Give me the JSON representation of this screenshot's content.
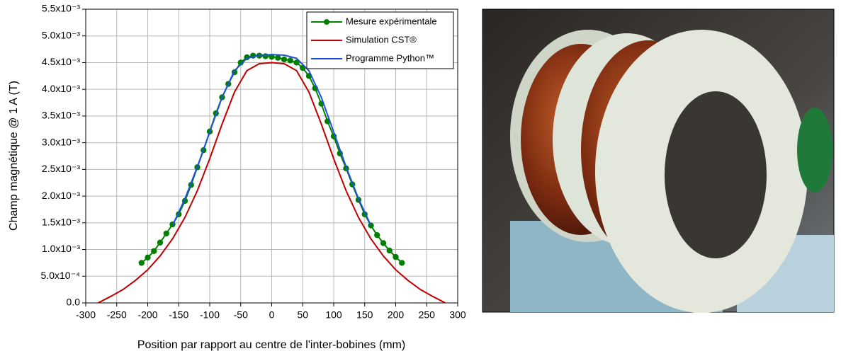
{
  "chart_data": {
    "type": "line",
    "xlabel": "Position par rapport au centre de l'inter-bobines (mm)",
    "ylabel": "Champ magnétique @ 1 A (T)",
    "xlim": [
      -300,
      300
    ],
    "ylim": [
      0,
      0.0055
    ],
    "xticks": [
      -300,
      -250,
      -200,
      -150,
      -100,
      -50,
      0,
      50,
      100,
      150,
      200,
      250,
      300
    ],
    "yticks": [
      {
        "value": 0,
        "label": "0.0"
      },
      {
        "value": 0.0005,
        "label": "5.0x10⁻⁴"
      },
      {
        "value": 0.001,
        "label": "1.0x10⁻³"
      },
      {
        "value": 0.0015,
        "label": "1.5x10⁻³"
      },
      {
        "value": 0.002,
        "label": "2.0x10⁻³"
      },
      {
        "value": 0.0025,
        "label": "2.5x10⁻³"
      },
      {
        "value": 0.003,
        "label": "3.0x10⁻³"
      },
      {
        "value": 0.0035,
        "label": "3.5x10⁻³"
      },
      {
        "value": 0.004,
        "label": "4.0x10⁻³"
      },
      {
        "value": 0.0045,
        "label": "4.5x10⁻³"
      },
      {
        "value": 0.005,
        "label": "5.0x10⁻³"
      },
      {
        "value": 0.0055,
        "label": "5.5x10⁻³"
      }
    ],
    "grid": true,
    "legend": "upper right",
    "series": [
      {
        "name": "Mesure expérimentale",
        "color": "#008000",
        "marker": true,
        "x": [
          -210,
          -200,
          -190,
          -180,
          -170,
          -160,
          -150,
          -140,
          -130,
          -120,
          -110,
          -100,
          -90,
          -80,
          -70,
          -60,
          -50,
          -40,
          -30,
          -20,
          -10,
          0,
          10,
          20,
          30,
          40,
          50,
          60,
          70,
          80,
          90,
          100,
          110,
          120,
          130,
          140,
          150,
          160,
          170,
          180,
          190,
          200,
          210
        ],
        "values": [
          0.00075,
          0.00085,
          0.00097,
          0.00113,
          0.0013,
          0.00147,
          0.00166,
          0.00191,
          0.00221,
          0.00254,
          0.00286,
          0.00321,
          0.00355,
          0.00385,
          0.0041,
          0.00432,
          0.0045,
          0.0046,
          0.00463,
          0.00463,
          0.00462,
          0.00461,
          0.00459,
          0.00456,
          0.00454,
          0.0045,
          0.0044,
          0.00425,
          0.00402,
          0.00373,
          0.0034,
          0.00312,
          0.0028,
          0.00252,
          0.00222,
          0.00193,
          0.00166,
          0.00145,
          0.00127,
          0.00112,
          0.00098,
          0.00086,
          0.00075
        ]
      },
      {
        "name": "Simulation CST®",
        "color": "#c00000",
        "marker": false,
        "x": [
          -280,
          -260,
          -240,
          -220,
          -200,
          -180,
          -160,
          -140,
          -120,
          -100,
          -80,
          -60,
          -40,
          -20,
          0,
          20,
          40,
          60,
          80,
          100,
          120,
          140,
          160,
          180,
          200,
          220,
          240,
          260,
          280
        ],
        "values": [
          0,
          0.00012,
          0.00025,
          0.00042,
          0.00062,
          0.00088,
          0.0012,
          0.0016,
          0.0021,
          0.0027,
          0.00335,
          0.00395,
          0.00435,
          0.00448,
          0.0045,
          0.00448,
          0.00435,
          0.00395,
          0.00335,
          0.0027,
          0.0021,
          0.0016,
          0.0012,
          0.00088,
          0.00062,
          0.00042,
          0.00025,
          0.00012,
          0
        ]
      },
      {
        "name": "Programme Python™",
        "color": "#2050e0",
        "marker": false,
        "x": [
          -160,
          -140,
          -120,
          -100,
          -80,
          -60,
          -40,
          -20,
          0,
          20,
          40,
          60,
          80,
          100,
          120,
          140,
          160
        ],
        "values": [
          0.00145,
          0.00195,
          0.00255,
          0.0032,
          0.00385,
          0.00435,
          0.00458,
          0.00464,
          0.00465,
          0.00464,
          0.00458,
          0.00435,
          0.00385,
          0.0032,
          0.00255,
          0.00195,
          0.00145
        ]
      }
    ]
  }
}
